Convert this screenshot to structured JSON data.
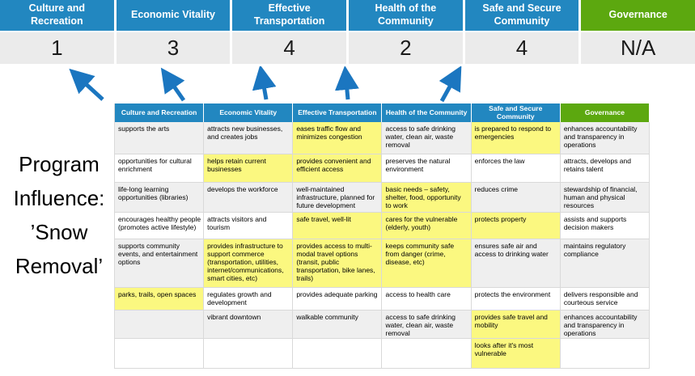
{
  "page": {
    "title_lines": [
      "Program",
      "Influence:",
      "’Snow",
      "Removal’"
    ]
  },
  "colors": {
    "priority_blue": "#2287c0",
    "governance_green": "#5ca80f",
    "score_gray": "#ebebeb",
    "highlight_yellow": "#fbf880",
    "band_gray": "#efefef",
    "arrow_blue": "#1b76c0"
  },
  "scoreboard": {
    "columns": [
      {
        "label": "Culture and Recreation",
        "score": "1",
        "type": "blue"
      },
      {
        "label": "Economic Vitality",
        "score": "3",
        "type": "blue"
      },
      {
        "label": "Effective Transportation",
        "score": "4",
        "type": "blue"
      },
      {
        "label": "Health of the Community",
        "score": "2",
        "type": "blue"
      },
      {
        "label": "Safe and Secure Community",
        "score": "4",
        "type": "blue"
      },
      {
        "label": "Governance",
        "score": "N/A",
        "type": "green"
      }
    ]
  },
  "matrix": {
    "headers": [
      {
        "label": "Culture and Recreation",
        "type": "blue"
      },
      {
        "label": "Economic Vitality",
        "type": "blue"
      },
      {
        "label": "Effective Transportation",
        "type": "blue"
      },
      {
        "label": "Health of the Community",
        "type": "blue"
      },
      {
        "label": "Safe and Secure Community",
        "type": "blue"
      },
      {
        "label": "Governance",
        "type": "green"
      }
    ],
    "rows": [
      [
        {
          "t": "supports the arts",
          "h": false
        },
        {
          "t": "attracts new businesses, and creates jobs",
          "h": false
        },
        {
          "t": "eases traffic flow and minimizes congestion",
          "h": true
        },
        {
          "t": "access to safe drinking water, clean air, waste removal",
          "h": false
        },
        {
          "t": "is prepared to respond to emergencies",
          "h": true
        },
        {
          "t": "enhances accountability and transparency in operations",
          "h": false
        }
      ],
      [
        {
          "t": "opportunities for cultural enrichment",
          "h": false
        },
        {
          "t": "helps retain current businesses",
          "h": true
        },
        {
          "t": "provides convenient and efficient access",
          "h": true
        },
        {
          "t": "preserves the natural environment",
          "h": false
        },
        {
          "t": "enforces the law",
          "h": false
        },
        {
          "t": "attracts, develops and retains talent",
          "h": false
        }
      ],
      [
        {
          "t": "life-long learning opportunities (libraries)",
          "h": false
        },
        {
          "t": "develops the workforce",
          "h": false
        },
        {
          "t": "well-maintained infrastructure, planned for future development",
          "h": false
        },
        {
          "t": "basic needs – safety, shelter, food, opportunity to work",
          "h": true
        },
        {
          "t": "reduces crime",
          "h": false
        },
        {
          "t": "stewardship of financial, human and physical resources",
          "h": false
        }
      ],
      [
        {
          "t": "encourages healthy people (promotes active lifestyle)",
          "h": false
        },
        {
          "t": "attracts visitors and tourism",
          "h": false
        },
        {
          "t": "safe travel, well-lit",
          "h": true
        },
        {
          "t": "cares for the vulnerable (elderly, youth)",
          "h": true
        },
        {
          "t": "protects property",
          "h": true
        },
        {
          "t": "assists and supports decision makers",
          "h": false
        }
      ],
      [
        {
          "t": "supports community events, and entertainment options",
          "h": false
        },
        {
          "t": "provides infrastructure to support commerce (transportation, utilities, internet/communications, smart cities, etc)",
          "h": true
        },
        {
          "t": "provides access to multi-modal travel options (transit, public transportation, bike lanes, trails)",
          "h": true
        },
        {
          "t": "keeps community safe from danger (crime, disease, etc)",
          "h": true
        },
        {
          "t": "ensures safe air and access to drinking water",
          "h": false
        },
        {
          "t": "maintains regulatory compliance",
          "h": false
        }
      ],
      [
        {
          "t": "parks, trails, open spaces",
          "h": true
        },
        {
          "t": "regulates growth and development",
          "h": false
        },
        {
          "t": "provides adequate parking",
          "h": false
        },
        {
          "t": "access to health care",
          "h": false
        },
        {
          "t": "protects the environment",
          "h": false
        },
        {
          "t": "delivers responsible and courteous service",
          "h": false
        }
      ],
      [
        {
          "t": "",
          "h": false
        },
        {
          "t": "vibrant downtown",
          "h": false
        },
        {
          "t": "walkable community",
          "h": false
        },
        {
          "t": "access to safe drinking water, clean air, waste removal",
          "h": false
        },
        {
          "t": "provides safe travel and mobility",
          "h": true
        },
        {
          "t": "enhances accountability and transparency in operations",
          "h": false
        }
      ],
      [
        {
          "t": "",
          "h": false
        },
        {
          "t": "",
          "h": false
        },
        {
          "t": "",
          "h": false
        },
        {
          "t": "",
          "h": false
        },
        {
          "t": "looks after it's most vulnerable",
          "h": true
        },
        {
          "t": "",
          "h": false
        }
      ]
    ]
  }
}
